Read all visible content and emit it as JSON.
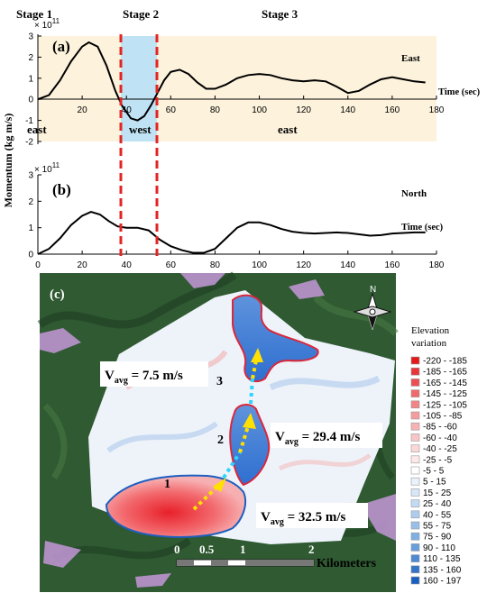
{
  "stages": [
    "Stage 1",
    "Stage 2",
    "Stage 3"
  ],
  "ylabel": "Momentum (kg m/s)",
  "chart_data": [
    {
      "type": "line",
      "panel_label": "(a)",
      "corner_text": "East",
      "exponent": "× 10",
      "exponent_power": "11",
      "xlabel": "Time (sec)",
      "xlim": [
        0,
        180
      ],
      "ylim": [
        -2,
        3
      ],
      "xticks": [
        "20",
        "40",
        "60",
        "80",
        "100",
        "120",
        "140",
        "160",
        "180"
      ],
      "yticks": [
        "-2",
        "-1",
        "0",
        "1",
        "2",
        "3"
      ],
      "phase_labels": [
        "east",
        "west",
        "east"
      ],
      "stage_boundaries": [
        37,
        54
      ],
      "x": [
        0,
        5,
        10,
        15,
        20,
        23,
        27,
        31,
        35,
        38,
        42,
        45,
        48,
        51,
        54,
        57,
        60,
        64,
        68,
        72,
        76,
        80,
        85,
        90,
        95,
        100,
        105,
        110,
        115,
        120,
        125,
        130,
        135,
        140,
        145,
        150,
        155,
        160,
        165,
        170,
        175
      ],
      "values": [
        0.0,
        0.2,
        0.9,
        1.8,
        2.5,
        2.7,
        2.5,
        1.6,
        0.4,
        -0.3,
        -0.9,
        -1.0,
        -0.8,
        -0.3,
        0.3,
        0.9,
        1.3,
        1.4,
        1.2,
        0.8,
        0.5,
        0.5,
        0.7,
        1.0,
        1.15,
        1.2,
        1.15,
        1.0,
        0.9,
        0.85,
        0.9,
        0.85,
        0.6,
        0.3,
        0.4,
        0.7,
        0.95,
        1.05,
        0.95,
        0.85,
        0.8
      ]
    },
    {
      "type": "line",
      "panel_label": "(b)",
      "corner_text": "North",
      "exponent": "× 10",
      "exponent_power": "11",
      "xlabel": "Time (sec)",
      "xlim": [
        0,
        180
      ],
      "ylim": [
        0,
        3
      ],
      "xticks": [
        "0",
        "20",
        "40",
        "60",
        "80",
        "100",
        "120",
        "140",
        "160",
        "180"
      ],
      "yticks": [
        "0",
        "1",
        "2",
        "3"
      ],
      "stage_boundaries": [
        37,
        54
      ],
      "x": [
        0,
        5,
        10,
        15,
        20,
        24,
        28,
        32,
        36,
        40,
        45,
        50,
        55,
        60,
        65,
        70,
        75,
        80,
        85,
        90,
        95,
        100,
        105,
        110,
        115,
        120,
        125,
        130,
        135,
        140,
        145,
        150,
        155,
        160,
        165,
        170,
        175
      ],
      "values": [
        0.0,
        0.2,
        0.6,
        1.1,
        1.45,
        1.6,
        1.5,
        1.25,
        1.05,
        1.0,
        1.0,
        0.9,
        0.55,
        0.3,
        0.15,
        0.05,
        0.05,
        0.2,
        0.6,
        1.0,
        1.2,
        1.2,
        1.1,
        0.95,
        0.85,
        0.8,
        0.78,
        0.8,
        0.82,
        0.8,
        0.75,
        0.7,
        0.72,
        0.78,
        0.8,
        0.82,
        0.82
      ]
    }
  ],
  "map": {
    "panel_label": "(c)",
    "north_label": "N",
    "zone_labels": [
      "1",
      "2",
      "3"
    ],
    "velocity_prefix": "V",
    "velocity_sub": "avg",
    "velocities": [
      " = 32.5 m/s",
      " = 29.4 m/s",
      " = 7.5 m/s"
    ],
    "scale_ticks": [
      "0",
      "0.5",
      "1",
      "2"
    ],
    "scale_unit": "Kilometers",
    "legend_title": [
      "Elevation",
      "variation"
    ],
    "legend": [
      {
        "label": "-220 - -185",
        "color": "#e31a1c"
      },
      {
        "label": "-185 - -165",
        "color": "#e8353a"
      },
      {
        "label": "-165 - -145",
        "color": "#ec4f52"
      },
      {
        "label": "-145 - -125",
        "color": "#f06a6c"
      },
      {
        "label": "-125 - -105",
        "color": "#f38486"
      },
      {
        "label": "-105 - -85",
        "color": "#f59d9e"
      },
      {
        "label": "-85 - -60",
        "color": "#f7b3b4"
      },
      {
        "label": "-60 - -40",
        "color": "#f9c6c7"
      },
      {
        "label": "-40 - -25",
        "color": "#fbd8d8"
      },
      {
        "label": "-25 - -5",
        "color": "#fde8e8"
      },
      {
        "label": "-5 - 5",
        "color": "#ffffff"
      },
      {
        "label": "5 - 15",
        "color": "#eaf2fb"
      },
      {
        "label": "15 - 25",
        "color": "#d7e7f7"
      },
      {
        "label": "25 - 40",
        "color": "#c3dbf3"
      },
      {
        "label": "40 - 55",
        "color": "#aecdee"
      },
      {
        "label": "55 - 75",
        "color": "#98bfe8"
      },
      {
        "label": "75 - 90",
        "color": "#80afe2"
      },
      {
        "label": "90 - 110",
        "color": "#679edb"
      },
      {
        "label": "110 - 135",
        "color": "#4d8ad3"
      },
      {
        "label": "135 - 160",
        "color": "#3475c9"
      },
      {
        "label": "160 - 197",
        "color": "#1a5fbf"
      }
    ]
  }
}
